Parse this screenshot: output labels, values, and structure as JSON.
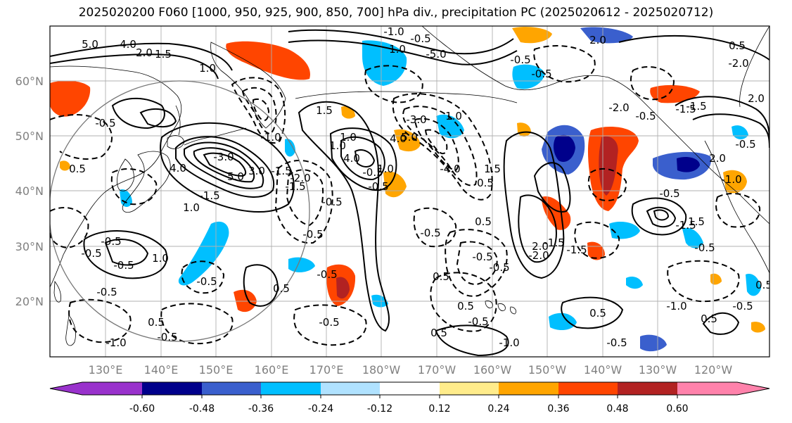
{
  "title": "2025020200 F060 [1000, 950, 925, 900, 850, 700] hPa div., precipitation PC (2025020612 - 2025020712)",
  "lat_labels": [
    "60°N",
    "50°N",
    "40°N",
    "30°N",
    "20°N"
  ],
  "lon_labels": [
    "130°E",
    "140°E",
    "150°E",
    "160°E",
    "170°E",
    "180°W",
    "170°W",
    "160°W",
    "150°W",
    "140°W",
    "130°W",
    "120°W"
  ],
  "colorbar": {
    "colors": [
      "#9932CC",
      "#00008B",
      "#3A5FCD",
      "#00BFFF",
      "#B0E2FF",
      "#FFFFFF",
      "#FFEC8B",
      "#FFA500",
      "#FF4500",
      "#B22222",
      "#FF82AB"
    ],
    "tick_labels": [
      "-0.60",
      "-0.48",
      "-0.36",
      "-0.24",
      "-0.12",
      "0.12",
      "0.24",
      "0.36",
      "0.48",
      "0.60"
    ]
  },
  "contour_labels": [
    "5.0",
    "4.0",
    "2.0",
    "1.5",
    "1.0",
    "-0.5",
    "5.0",
    "4.0",
    "3.0",
    "-1.0",
    "-0.5",
    "-5.0",
    "1.0",
    "2.0",
    "-0.5",
    "-0.5",
    "0.5",
    "-2.0",
    "0.5",
    "-3.0",
    "-1.5",
    "1.0",
    "-1.5",
    "1.0",
    "5.0",
    "4.0",
    "-0.5",
    "-0.5",
    "-0.5",
    "-0.5",
    "1.5",
    "1.0",
    "-4.0",
    "-3.0",
    "0.5",
    "1.0",
    "4.0",
    "-1.0",
    "-1.5",
    "-2.0",
    "1.0",
    "1.5",
    "-2.0",
    "-1.5",
    "-2.0",
    "-0.5",
    "-1.5",
    "2.0",
    "0.5",
    "0.5",
    "-0.5",
    "-0.5",
    "-0.5",
    "1.0",
    "-0.5",
    "-0.5",
    "-0.5",
    "0.5",
    "0.5",
    "-0.5",
    "-1.0",
    "-0.5",
    "-0.5",
    "0.5",
    "-0.5",
    "-1.0",
    "-0.5",
    "0.5",
    "-0.5",
    "2.0",
    "-1.5",
    "0.5",
    "-0.5",
    "-0.5",
    "-0.5",
    "1.5",
    "-1.5",
    "-1.0",
    "2.0",
    "-0.5",
    "0.5",
    "-1.0",
    "0.5",
    "-0.5",
    "-1.5"
  ]
}
